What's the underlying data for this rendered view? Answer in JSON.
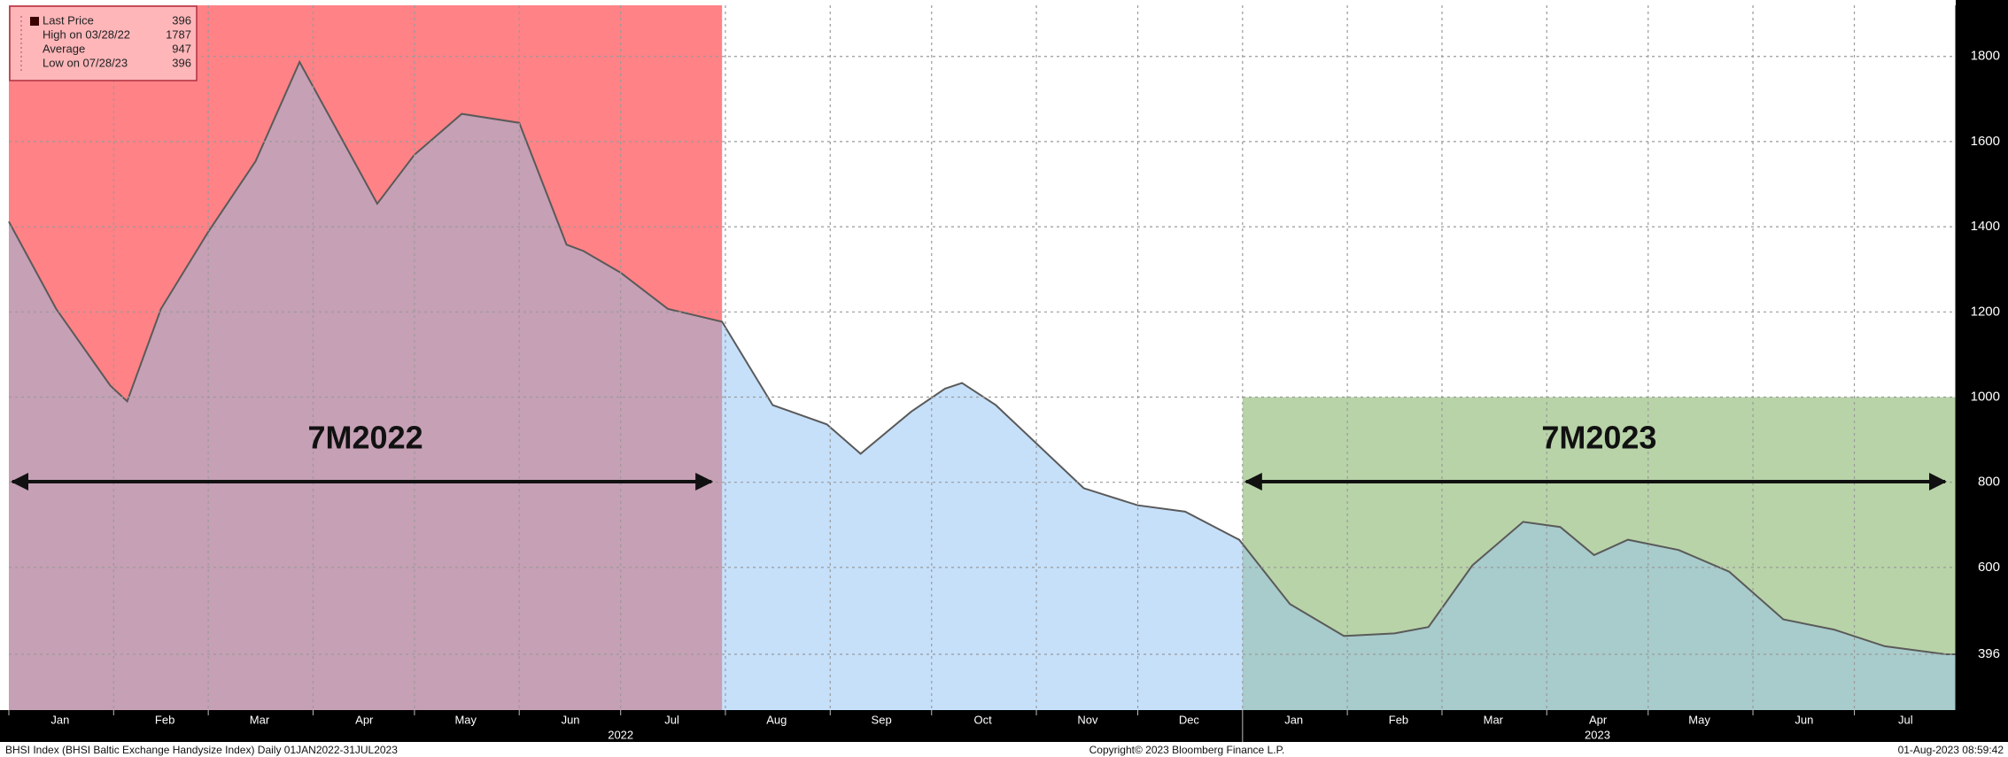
{
  "chart_data": {
    "type": "area",
    "legend": {
      "entries": [
        {
          "label": "Last Price",
          "value": 396
        },
        {
          "label": "High on 03/28/22",
          "value": 1787
        },
        {
          "label": "Average",
          "value": 947
        },
        {
          "label": "Low on 07/28/23",
          "value": 396
        }
      ],
      "corner": "top-left"
    },
    "series": [
      {
        "name": "BHSI Index",
        "color": "#5a5a5a",
        "fill": "#c6e0fa",
        "x": [
          "2022-01-01",
          "2022-01-15",
          "2022-01-31",
          "2022-02-05",
          "2022-02-15",
          "2022-03-01",
          "2022-03-15",
          "2022-03-28",
          "2022-04-10",
          "2022-04-20",
          "2022-05-01",
          "2022-05-15",
          "2022-06-01",
          "2022-06-15",
          "2022-06-20",
          "2022-07-01",
          "2022-07-15",
          "2022-07-31",
          "2022-08-15",
          "2022-08-31",
          "2022-09-10",
          "2022-09-25",
          "2022-10-05",
          "2022-10-10",
          "2022-10-20",
          "2022-11-01",
          "2022-11-15",
          "2022-12-01",
          "2022-12-15",
          "2022-12-31",
          "2023-01-15",
          "2023-01-31",
          "2023-02-15",
          "2023-02-25",
          "2023-03-10",
          "2023-03-25",
          "2023-04-05",
          "2023-04-15",
          "2023-04-25",
          "2023-05-10",
          "2023-05-25",
          "2023-06-10",
          "2023-06-25",
          "2023-07-10",
          "2023-07-28",
          "2023-07-31"
        ],
        "values": [
          1412,
          1207,
          1027,
          990,
          1207,
          1388,
          1554,
          1787,
          1599,
          1454,
          1569,
          1665,
          1644,
          1358,
          1343,
          1292,
          1207,
          1177,
          981,
          936,
          867,
          966,
          1020,
          1033,
          981,
          891,
          786,
          746,
          731,
          665,
          514,
          439,
          445,
          460,
          605,
          707,
          695,
          629,
          665,
          641,
          590,
          478,
          454,
          415,
          396,
          396
        ]
      }
    ],
    "xlim": [
      "2022-01-01",
      "2023-07-31"
    ],
    "xticks": [
      {
        "value": "2022-01-01",
        "label": "Jan"
      },
      {
        "value": "2022-02-01",
        "label": "Feb"
      },
      {
        "value": "2022-03-01",
        "label": "Mar"
      },
      {
        "value": "2022-04-01",
        "label": "Apr"
      },
      {
        "value": "2022-05-01",
        "label": "May"
      },
      {
        "value": "2022-06-01",
        "label": "Jun"
      },
      {
        "value": "2022-07-01",
        "label": "Jul"
      },
      {
        "value": "2022-08-01",
        "label": "Aug"
      },
      {
        "value": "2022-09-01",
        "label": "Sep"
      },
      {
        "value": "2022-10-01",
        "label": "Oct"
      },
      {
        "value": "2022-11-01",
        "label": "Nov"
      },
      {
        "value": "2022-12-01",
        "label": "Dec"
      },
      {
        "value": "2023-01-01",
        "label": "Jan"
      },
      {
        "value": "2023-02-01",
        "label": "Feb"
      },
      {
        "value": "2023-03-01",
        "label": "Mar"
      },
      {
        "value": "2023-04-01",
        "label": "Apr"
      },
      {
        "value": "2023-05-01",
        "label": "May"
      },
      {
        "value": "2023-06-01",
        "label": "Jun"
      },
      {
        "value": "2023-07-01",
        "label": "Jul"
      }
    ],
    "year_ticks": [
      {
        "value": "2022-07-01",
        "label": "2022"
      },
      {
        "value": "2023-04-16",
        "label": "2023"
      }
    ],
    "ylim": [
      265,
      1920
    ],
    "yticks": [
      600,
      800,
      1000,
      1200,
      1400,
      1600,
      1800
    ],
    "last_price_marker": 396,
    "grid": true,
    "regions": [
      {
        "label": "7M2022",
        "from": "2022-01-01",
        "to": "2022-07-31",
        "top": null,
        "color": "#ffb6b9"
      },
      {
        "label": "7M2023",
        "from": "2023-01-01",
        "to": "2023-07-31",
        "top": 1000,
        "color": "#d9e8cf"
      }
    ],
    "footer": {
      "left": "BHSI Index (BHSI Baltic Exchange Handysize Index) Daily 01JAN2022-31JUL2023",
      "center": "Copyright© 2023 Bloomberg Finance L.P.",
      "right": "01-Aug-2023 08:59:42"
    }
  }
}
